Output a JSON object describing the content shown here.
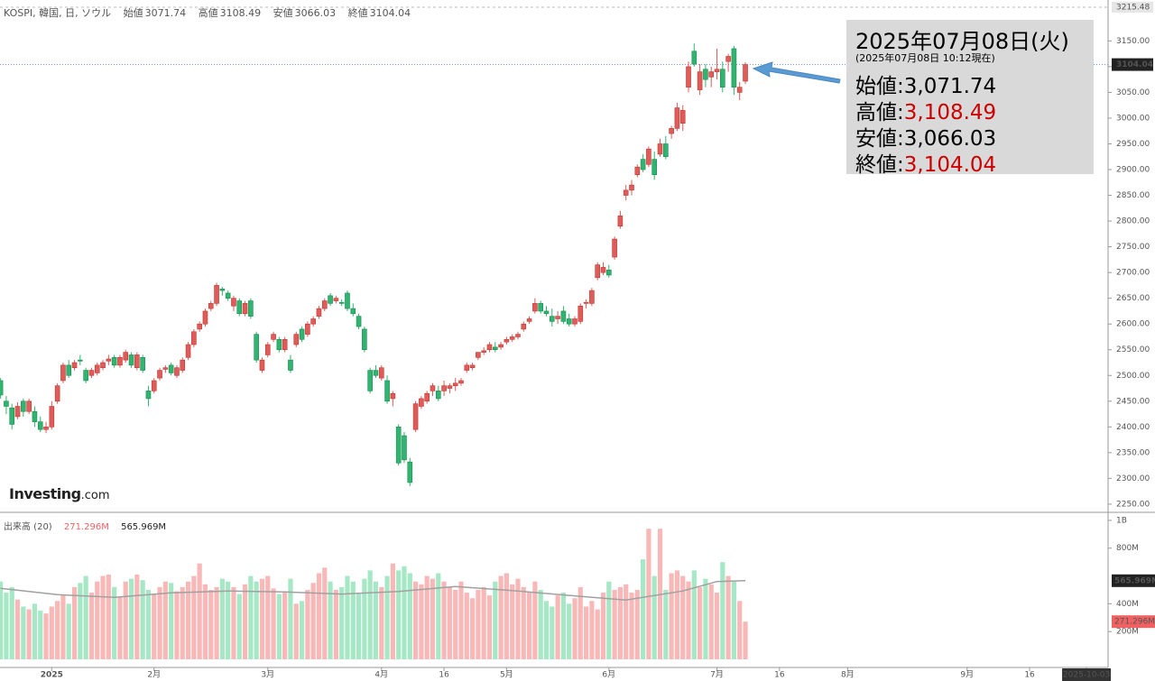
{
  "logo": {
    "name": "Investing",
    "suffix": ".com"
  },
  "info_box": {
    "date": "2025年07月08日(火)",
    "asof": "(2025年07月08日 10:12現在)",
    "rows": [
      {
        "name": "始値:",
        "value": 3071.74,
        "label": "3,071.74",
        "color": "#000000"
      },
      {
        "name": "高値:",
        "value": 3108.49,
        "label": "3,108.49",
        "color": "#cc0000"
      },
      {
        "name": "安値:",
        "value": 3066.03,
        "label": "3,066.03",
        "color": "#000000"
      },
      {
        "name": "終値:",
        "value": 3104.04,
        "label": "3,104.04",
        "color": "#cc0000"
      }
    ]
  },
  "chart_data": [
    {
      "type": "candlestick",
      "title": "KOSPI, 韓国, 日, ソウル",
      "ohlc_names": [
        "始値",
        "高値",
        "安値",
        "終値"
      ],
      "up_color": "#e05b5b",
      "down_color": "#2fb56f",
      "last_line_color": "#6c8fd8",
      "x": [
        0,
        1,
        2,
        3,
        4,
        5,
        6,
        7,
        8,
        9,
        10,
        11,
        12,
        13,
        14,
        15,
        16,
        17,
        18,
        19,
        20,
        21,
        22,
        23,
        24,
        25,
        26,
        27,
        28,
        29,
        30,
        31,
        32,
        33,
        34,
        35,
        36,
        37,
        38,
        39,
        40,
        41,
        42,
        43,
        44,
        45,
        46,
        47,
        48,
        49,
        50,
        51,
        52,
        53,
        54,
        55,
        56,
        57,
        58,
        59,
        60,
        61,
        62,
        63,
        64,
        65,
        66,
        67,
        68,
        69,
        70,
        71,
        72,
        73,
        74,
        75,
        76,
        77,
        78,
        79,
        80,
        81,
        82,
        83,
        84,
        85,
        86,
        87,
        88,
        89,
        90,
        91,
        92,
        93,
        94,
        95,
        96,
        97,
        98,
        99,
        100,
        101,
        102,
        103,
        104,
        105,
        106,
        107,
        108,
        109,
        110,
        111,
        112,
        113,
        114,
        115,
        116,
        117,
        118,
        119,
        120,
        121,
        122,
        123,
        124,
        125,
        126,
        127,
        128,
        129,
        130,
        131
      ],
      "open": [
        2490,
        2450,
        2437,
        2420,
        2450,
        2430,
        2430,
        2410,
        2395,
        2400,
        2450,
        2490,
        2520,
        2515,
        2530,
        2510,
        2500,
        2505,
        2515,
        2528,
        2535,
        2520,
        2530,
        2540,
        2515,
        2535,
        2470,
        2470,
        2495,
        2512,
        2520,
        2500,
        2510,
        2535,
        2560,
        2590,
        2600,
        2630,
        2640,
        2668,
        2660,
        2635,
        2645,
        2620,
        2645,
        2580,
        2510,
        2540,
        2570,
        2570,
        2550,
        2530,
        2560,
        2590,
        2580,
        2600,
        2615,
        2630,
        2655,
        2645,
        2642,
        2660,
        2630,
        2615,
        2590,
        2510,
        2510,
        2495,
        2490,
        2455,
        2400,
        2383,
        2332,
        2395,
        2440,
        2450,
        2470,
        2470,
        2470,
        2475,
        2480,
        2485,
        2510,
        2515,
        2535,
        2545,
        2550,
        2555,
        2555,
        2565,
        2570,
        2575,
        2590,
        2605,
        2625,
        2640,
        2625,
        2615,
        2610,
        2625,
        2610,
        2600,
        2605,
        2640,
        2640,
        2690,
        2700,
        2705,
        2730,
        2790,
        2850,
        2860,
        2890,
        2920,
        2910,
        2920,
        2930,
        2950,
        2970,
        2980,
        2990,
        3060,
        3130,
        3055,
        3095,
        3080,
        3090,
        3095,
        3110,
        3135,
        3050,
        3071.74
      ],
      "high": [
        2495,
        2460,
        2445,
        2448,
        2455,
        2455,
        2440,
        2420,
        2410,
        2450,
        2485,
        2525,
        2530,
        2530,
        2540,
        2515,
        2515,
        2525,
        2530,
        2540,
        2540,
        2540,
        2550,
        2545,
        2545,
        2540,
        2480,
        2495,
        2515,
        2520,
        2525,
        2520,
        2535,
        2565,
        2590,
        2605,
        2630,
        2645,
        2680,
        2672,
        2665,
        2655,
        2650,
        2645,
        2650,
        2585,
        2535,
        2565,
        2585,
        2575,
        2575,
        2540,
        2585,
        2595,
        2605,
        2615,
        2635,
        2650,
        2660,
        2655,
        2648,
        2665,
        2640,
        2620,
        2595,
        2515,
        2520,
        2520,
        2500,
        2470,
        2405,
        2390,
        2340,
        2450,
        2460,
        2470,
        2485,
        2480,
        2490,
        2485,
        2495,
        2495,
        2525,
        2525,
        2545,
        2555,
        2565,
        2565,
        2565,
        2575,
        2580,
        2585,
        2605,
        2615,
        2650,
        2645,
        2635,
        2630,
        2625,
        2635,
        2620,
        2615,
        2640,
        2648,
        2670,
        2720,
        2720,
        2715,
        2770,
        2820,
        2870,
        2880,
        2910,
        2930,
        2945,
        2935,
        2960,
        2965,
        2985,
        3030,
        3025,
        3110,
        3145,
        3105,
        3105,
        3100,
        3135,
        3110,
        3125,
        3140,
        3070,
        3108.49
      ],
      "low": [
        2455,
        2425,
        2395,
        2415,
        2420,
        2425,
        2400,
        2390,
        2388,
        2395,
        2445,
        2485,
        2495,
        2510,
        2520,
        2485,
        2495,
        2500,
        2510,
        2520,
        2515,
        2515,
        2525,
        2515,
        2510,
        2505,
        2440,
        2465,
        2490,
        2505,
        2500,
        2495,
        2505,
        2530,
        2555,
        2585,
        2595,
        2625,
        2635,
        2655,
        2645,
        2625,
        2615,
        2615,
        2610,
        2525,
        2505,
        2535,
        2565,
        2545,
        2545,
        2505,
        2555,
        2565,
        2575,
        2595,
        2610,
        2625,
        2635,
        2640,
        2635,
        2625,
        2615,
        2590,
        2545,
        2465,
        2495,
        2490,
        2445,
        2440,
        2325,
        2330,
        2285,
        2390,
        2435,
        2445,
        2460,
        2450,
        2460,
        2465,
        2470,
        2480,
        2505,
        2510,
        2530,
        2540,
        2545,
        2545,
        2550,
        2560,
        2565,
        2570,
        2585,
        2600,
        2620,
        2620,
        2615,
        2595,
        2600,
        2600,
        2595,
        2595,
        2600,
        2630,
        2635,
        2685,
        2695,
        2690,
        2725,
        2785,
        2840,
        2850,
        2885,
        2895,
        2905,
        2880,
        2925,
        2920,
        2960,
        2975,
        2975,
        3050,
        3100,
        3045,
        3060,
        3060,
        3075,
        3050,
        3090,
        3045,
        3035,
        3066.03
      ],
      "close": [
        2462,
        2440,
        2405,
        2440,
        2430,
        2450,
        2410,
        2395,
        2400,
        2440,
        2480,
        2520,
        2500,
        2525,
        2528,
        2490,
        2510,
        2520,
        2525,
        2532,
        2520,
        2535,
        2545,
        2520,
        2540,
        2510,
        2455,
        2490,
        2510,
        2515,
        2505,
        2515,
        2530,
        2560,
        2585,
        2600,
        2625,
        2640,
        2675,
        2665,
        2650,
        2650,
        2620,
        2640,
        2615,
        2530,
        2530,
        2560,
        2580,
        2550,
        2570,
        2510,
        2580,
        2570,
        2600,
        2610,
        2630,
        2645,
        2640,
        2650,
        2640,
        2630,
        2620,
        2595,
        2550,
        2470,
        2500,
        2515,
        2450,
        2465,
        2330,
        2336,
        2292,
        2445,
        2455,
        2465,
        2480,
        2455,
        2480,
        2480,
        2485,
        2490,
        2520,
        2520,
        2545,
        2548,
        2560,
        2550,
        2560,
        2570,
        2575,
        2580,
        2600,
        2610,
        2640,
        2625,
        2620,
        2605,
        2615,
        2605,
        2600,
        2610,
        2635,
        2642,
        2665,
        2715,
        2710,
        2695,
        2765,
        2810,
        2860,
        2870,
        2905,
        2900,
        2940,
        2890,
        2950,
        2925,
        2980,
        3020,
        3015,
        3100,
        3105,
        3090,
        3075,
        3090,
        3095,
        3060,
        3120,
        3060,
        3060,
        3104.04
      ],
      "xlim": [
        -0.1,
        194.8
      ],
      "xticks": [
        {
          "value": 9,
          "label": "2025"
        },
        {
          "value": 27,
          "label": "2月"
        },
        {
          "value": 47,
          "label": "3月"
        },
        {
          "value": 67,
          "label": "4月"
        },
        {
          "value": 78,
          "label": "16"
        },
        {
          "value": 89,
          "label": "5月"
        },
        {
          "value": 107,
          "label": "6月"
        },
        {
          "value": 126,
          "label": "7月"
        },
        {
          "value": 137,
          "label": "16"
        },
        {
          "value": 149,
          "label": "8月"
        },
        {
          "value": 170,
          "label": "9月"
        },
        {
          "value": 181,
          "label": "16"
        },
        {
          "value": 191,
          "label": "2025-10-03"
        }
      ],
      "ylim": [
        2236,
        3215.48
      ],
      "yticks": [
        {
          "value": 2250,
          "label": "2250.00"
        },
        {
          "value": 2300,
          "label": "2300.00"
        },
        {
          "value": 2350,
          "label": "2350.00"
        },
        {
          "value": 2400,
          "label": "2400.00"
        },
        {
          "value": 2450,
          "label": "2450.00"
        },
        {
          "value": 2500,
          "label": "2500.00"
        },
        {
          "value": 2550,
          "label": "2550.00"
        },
        {
          "value": 2600,
          "label": "2600.00"
        },
        {
          "value": 2650,
          "label": "2650.00"
        },
        {
          "value": 2700,
          "label": "2700.00"
        },
        {
          "value": 2750,
          "label": "2750.00"
        },
        {
          "value": 2800,
          "label": "2800.00"
        },
        {
          "value": 2850,
          "label": "2850.00"
        },
        {
          "value": 2900,
          "label": "2900.00"
        },
        {
          "value": 2950,
          "label": "2950.00"
        },
        {
          "value": 3000,
          "label": "3000.00"
        },
        {
          "value": 3050,
          "label": "3050.00"
        },
        {
          "value": 3100,
          "label": "3100.00"
        },
        {
          "value": 3150,
          "label": "3150.00"
        }
      ]
    },
    {
      "type": "bar",
      "title": "出来高 (20)",
      "up_color": "#f9b8b8",
      "down_color": "#a6e8c6",
      "values": [
        560,
        480,
        520,
        430,
        380,
        360,
        400,
        350,
        330,
        380,
        420,
        460,
        400,
        520,
        550,
        600,
        480,
        560,
        600,
        610,
        520,
        450,
        560,
        580,
        610,
        570,
        500,
        470,
        520,
        560,
        550,
        490,
        520,
        560,
        600,
        690,
        540,
        500,
        520,
        580,
        560,
        520,
        470,
        540,
        600,
        560,
        580,
        600,
        510,
        470,
        490,
        580,
        400,
        420,
        500,
        550,
        620,
        660,
        560,
        500,
        520,
        600,
        560,
        470,
        580,
        640,
        560,
        520,
        600,
        690,
        640,
        670,
        620,
        560,
        540,
        600,
        580,
        620,
        560,
        520,
        500,
        560,
        480,
        440,
        500,
        520,
        460,
        560,
        600,
        620,
        540,
        580,
        520,
        480,
        560,
        500,
        420,
        380,
        460,
        480,
        400,
        440,
        520,
        380,
        420,
        360,
        480,
        560,
        500,
        520,
        540,
        480,
        500,
        720,
        940,
        600,
        940,
        500,
        620,
        640,
        600,
        560,
        640,
        520,
        580,
        540,
        480,
        700,
        600,
        560,
        420,
        271.296
      ],
      "last_label": "271.296M",
      "last_color": "#f06262",
      "ma": {
        "x": [
          0,
          10,
          20,
          30,
          40,
          50,
          60,
          70,
          80,
          90,
          100,
          110,
          120,
          126,
          131
        ],
        "values": [
          511,
          466,
          446,
          479,
          492,
          485,
          470,
          489,
          524,
          495,
          460,
          427,
          492,
          560,
          565.969
        ],
        "color": "#a0a0a0",
        "last_label": "565.969M"
      },
      "ylim": [
        0,
        1045
      ],
      "yticks": [
        {
          "value": 200,
          "label": "200M"
        },
        {
          "value": 400,
          "label": "400M"
        },
        {
          "value": 800,
          "label": "800M"
        },
        {
          "value": 1000,
          "label": "1B"
        }
      ]
    }
  ]
}
